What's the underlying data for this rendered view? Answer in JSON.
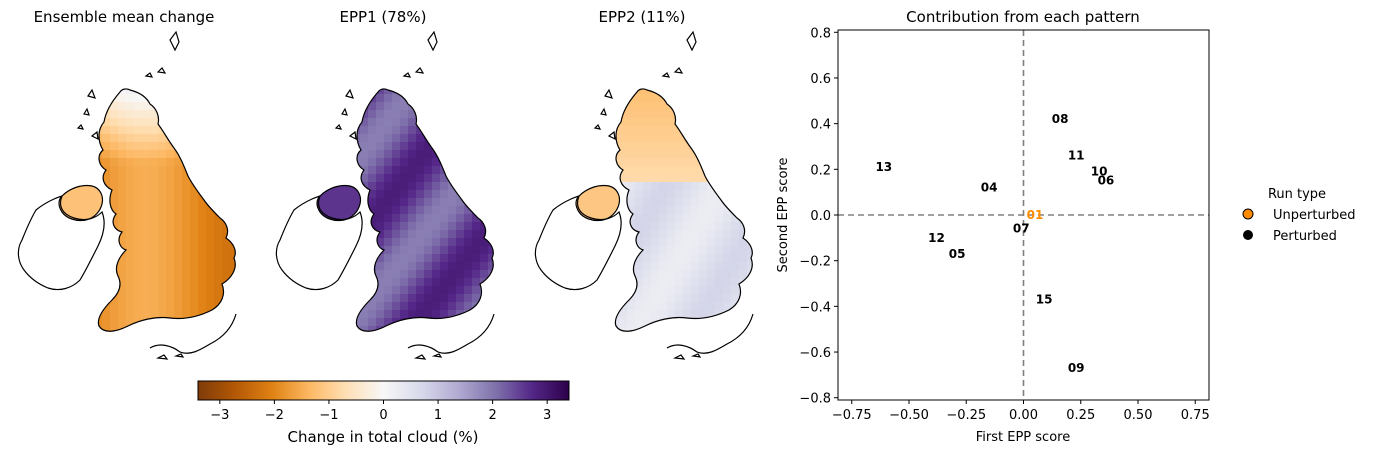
{
  "panels": [
    {
      "title": "Ensemble mean change"
    },
    {
      "title": "EPP1 (78%)"
    },
    {
      "title": "EPP2 (11%)"
    }
  ],
  "colorbar": {
    "label": "Change in total cloud (%)",
    "ticks": [
      "−3",
      "−2",
      "−1",
      "0",
      "1",
      "2",
      "3"
    ],
    "tick_values": [
      -3,
      -2,
      -1,
      0,
      1,
      2,
      3
    ],
    "range": [
      -3.4,
      3.4
    ],
    "colormap": "PuOr",
    "colors": [
      "#7f3b08",
      "#b35806",
      "#e08214",
      "#fdb863",
      "#fee0b6",
      "#f7f7f7",
      "#d8daeb",
      "#b2abd2",
      "#8073ac",
      "#542788",
      "#2d004b"
    ]
  },
  "chart_data": {
    "type": "scatter",
    "title": "Contribution from each pattern",
    "xlabel": "First EPP score",
    "ylabel": "Second EPP score",
    "xlim": [
      -0.81,
      0.81
    ],
    "ylim": [
      -0.81,
      0.81
    ],
    "xticks": [
      -0.75,
      -0.5,
      -0.25,
      0.0,
      0.25,
      0.5,
      0.75
    ],
    "xtick_labels": [
      "−0.75",
      "−0.50",
      "−0.25",
      "0.00",
      "0.25",
      "0.50",
      "0.75"
    ],
    "yticks": [
      -0.8,
      -0.6,
      -0.4,
      -0.2,
      0.0,
      0.2,
      0.4,
      0.6,
      0.8
    ],
    "ytick_labels": [
      "−0.8",
      "−0.6",
      "−0.4",
      "−0.2",
      "0.0",
      "0.2",
      "0.4",
      "0.6",
      "0.8"
    ],
    "grid": false,
    "reference_lines": {
      "x": 0,
      "y": 0,
      "style": "dashed",
      "color": "#808080"
    },
    "legend": {
      "title": "Run type",
      "placement": "right",
      "entries": [
        {
          "label": "Unperturbed",
          "color": "#ff8c00"
        },
        {
          "label": "Perturbed",
          "color": "#000000"
        }
      ]
    },
    "points": [
      {
        "label": "01",
        "x": 0.05,
        "y": 0.0,
        "type": "Unperturbed"
      },
      {
        "label": "04",
        "x": -0.15,
        "y": 0.12,
        "type": "Perturbed"
      },
      {
        "label": "05",
        "x": -0.29,
        "y": -0.17,
        "type": "Perturbed"
      },
      {
        "label": "06",
        "x": 0.36,
        "y": 0.15,
        "type": "Perturbed"
      },
      {
        "label": "07",
        "x": -0.01,
        "y": -0.06,
        "type": "Perturbed"
      },
      {
        "label": "08",
        "x": 0.16,
        "y": 0.42,
        "type": "Perturbed"
      },
      {
        "label": "09",
        "x": 0.23,
        "y": -0.67,
        "type": "Perturbed"
      },
      {
        "label": "10",
        "x": 0.33,
        "y": 0.19,
        "type": "Perturbed"
      },
      {
        "label": "11",
        "x": 0.23,
        "y": 0.26,
        "type": "Perturbed"
      },
      {
        "label": "12",
        "x": -0.38,
        "y": -0.1,
        "type": "Perturbed"
      },
      {
        "label": "13",
        "x": -0.61,
        "y": 0.21,
        "type": "Perturbed"
      },
      {
        "label": "15",
        "x": 0.09,
        "y": -0.37,
        "type": "Perturbed"
      }
    ]
  }
}
